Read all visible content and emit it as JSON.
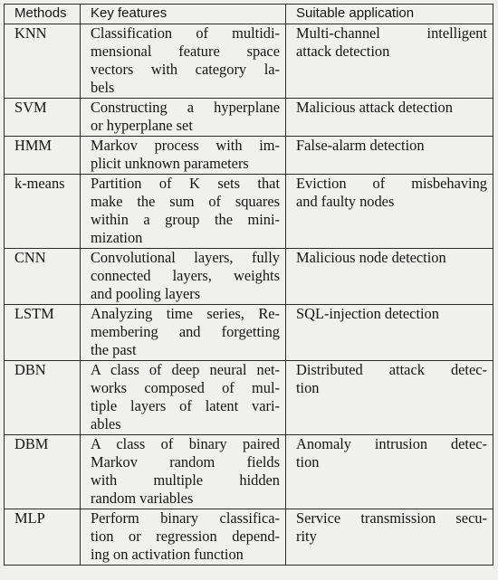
{
  "header": {
    "col1": "Methods",
    "col2": "Key features",
    "col3": "Suitable application"
  },
  "rows": [
    {
      "method": "KNN",
      "features": [
        "Classification of multidi-",
        "mensional feature space",
        "vectors with category la-",
        "bels"
      ],
      "application": [
        "Multi-channel intelligent",
        "attack detection"
      ]
    },
    {
      "method": "SVM",
      "features": [
        "Constructing a hyperplane",
        "or hyperplane set"
      ],
      "application": [
        "Malicious attack detection"
      ]
    },
    {
      "method": "HMM",
      "features": [
        "Markov process with im-",
        "plicit unknown parameters"
      ],
      "application": [
        "False-alarm detection"
      ]
    },
    {
      "method": "k-means",
      "features": [
        "Partition of K sets that",
        "make the sum of squares",
        "within a group the mini-",
        "mization"
      ],
      "application": [
        "Eviction of misbehaving",
        "and faulty nodes"
      ]
    },
    {
      "method": "CNN",
      "features": [
        "Convolutional layers, fully",
        "connected layers, weights",
        "and pooling layers"
      ],
      "application": [
        "Malicious node detection"
      ]
    },
    {
      "method": "LSTM",
      "features": [
        "Analyzing time series, Re-",
        "membering and forgetting",
        "the past"
      ],
      "application": [
        "SQL-injection detection"
      ]
    },
    {
      "method": "DBN",
      "features": [
        "A class of deep neural net-",
        "works composed of mul-",
        "tiple layers of latent vari-",
        "ables"
      ],
      "application": [
        "Distributed attack detec-",
        "tion"
      ]
    },
    {
      "method": "DBM",
      "features": [
        "A class of binary paired",
        "Markov random fields",
        "with multiple hidden",
        "random variables"
      ],
      "application": [
        "Anomaly intrusion detec-",
        "tion"
      ]
    },
    {
      "method": "MLP",
      "features": [
        "Perform binary classifica-",
        "tion or regression depend-",
        "ing on activation function"
      ],
      "application": [
        "Service transmission secu-",
        "rity"
      ]
    }
  ]
}
